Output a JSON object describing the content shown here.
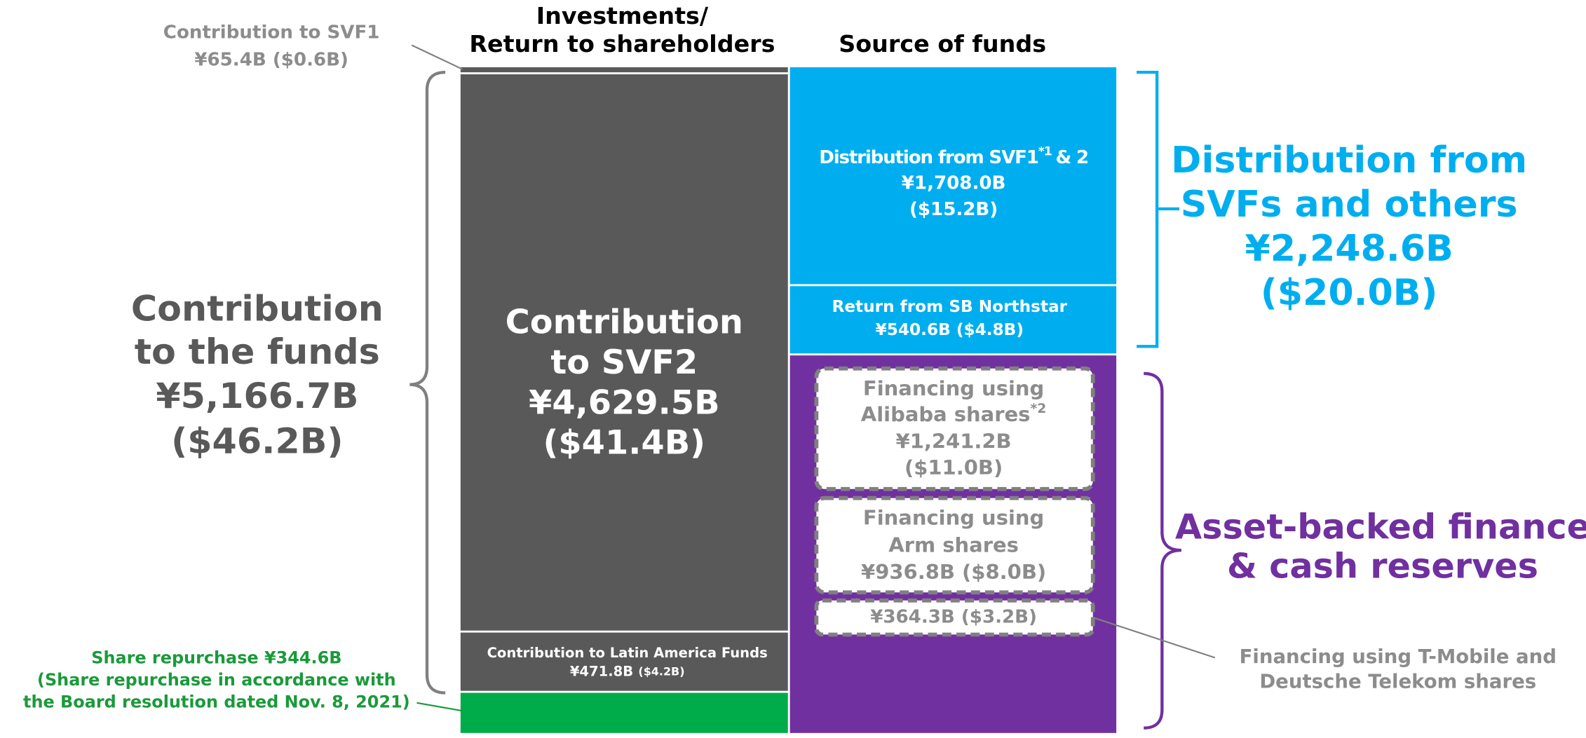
{
  "headers": {
    "left": [
      "Investments/",
      "Return to shareholders"
    ],
    "right": "Source of funds"
  },
  "left_column": {
    "svf1": {
      "lines": [
        "Contribution to SVF1",
        "¥65.4B ($0.6B)"
      ]
    },
    "svf2": {
      "lines": [
        "Contribution",
        "to SVF2",
        "¥4,629.5B",
        "($41.4B)"
      ]
    },
    "latin_america": {
      "lines": [
        "Contribution to Latin America Funds",
        "¥471.8B",
        "($4.2B)"
      ]
    },
    "share_repurchase": {
      "lines": [
        "Share repurchase ¥344.6B",
        "(Share repurchase in accordance with",
        "the Board resolution dated Nov. 8, 2021)"
      ]
    }
  },
  "left_total": {
    "lines": [
      "Contribution",
      "to the funds",
      "¥5,166.7B",
      "($46.2B)"
    ]
  },
  "right_column": {
    "svf_distribution": {
      "text": "Distribution from SVF1",
      "note": "*1",
      "suffix": "& 2",
      "lines": [
        "¥1,708.0B",
        "($15.2B)"
      ]
    },
    "northstar": {
      "lines": [
        "Return from SB Northstar",
        "¥540.6B ($4.8B)"
      ]
    },
    "alibaba": {
      "lines": [
        "Financing using",
        "Alibaba shares"
      ],
      "note": "*2",
      "amounts": [
        "¥1,241.2B",
        "($11.0B)"
      ]
    },
    "arm": {
      "lines": [
        "Financing using",
        "Arm shares",
        "¥936.8B ($8.0B)"
      ]
    },
    "tmobile": {
      "amount": "¥364.3B ($3.2B)",
      "callout": [
        "Financing using T-Mobile and",
        "Deutsche Telekom shares"
      ]
    }
  },
  "right_totals": {
    "distribution": {
      "lines": [
        "Distribution from",
        "SVFs and others",
        "¥2,248.6B",
        "($20.0B)"
      ]
    },
    "asset_backed": {
      "lines": [
        "Asset-backed finance",
        "& cash reserves"
      ]
    }
  }
}
